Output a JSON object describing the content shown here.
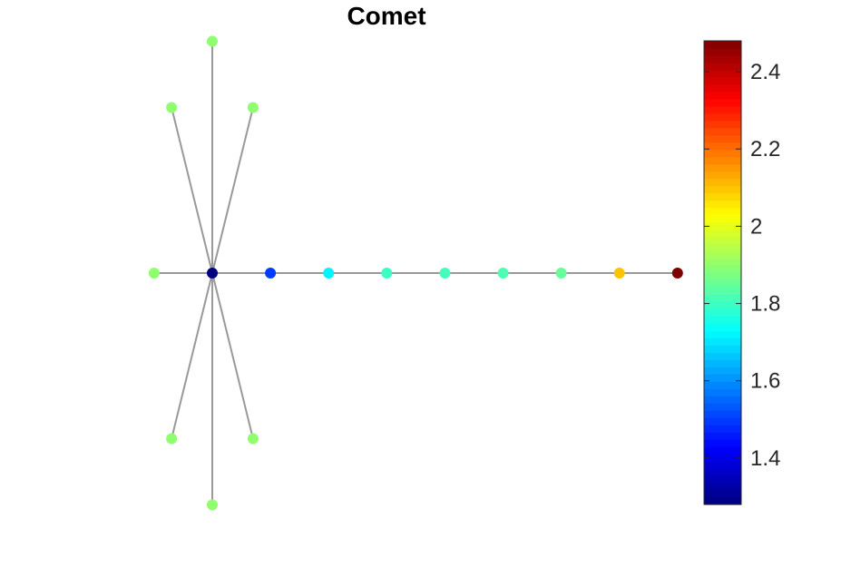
{
  "title": "Comet",
  "graph": {
    "edge_color": "#999999",
    "nodes": [
      {
        "id": "n1",
        "x": 0,
        "y": 0,
        "value": 1.28
      },
      {
        "id": "n2",
        "x": 0,
        "y": 3.5,
        "value": 1.9
      },
      {
        "id": "n3",
        "x": -0.7,
        "y": 2.5,
        "value": 1.9
      },
      {
        "id": "n4",
        "x": 0.7,
        "y": 2.5,
        "value": 1.9
      },
      {
        "id": "n5",
        "x": -1,
        "y": 0,
        "value": 1.9
      },
      {
        "id": "n6",
        "x": -0.7,
        "y": -2.5,
        "value": 1.9
      },
      {
        "id": "n7",
        "x": 0.7,
        "y": -2.5,
        "value": 1.9
      },
      {
        "id": "n8",
        "x": 0,
        "y": -3.5,
        "value": 1.9
      },
      {
        "id": "n9",
        "x": 1,
        "y": 0,
        "value": 1.5
      },
      {
        "id": "n10",
        "x": 2,
        "y": 0,
        "value": 1.72
      },
      {
        "id": "n11",
        "x": 3,
        "y": 0,
        "value": 1.8
      },
      {
        "id": "n12",
        "x": 4,
        "y": 0,
        "value": 1.81
      },
      {
        "id": "n13",
        "x": 5,
        "y": 0,
        "value": 1.82
      },
      {
        "id": "n14",
        "x": 6,
        "y": 0,
        "value": 1.85
      },
      {
        "id": "n15",
        "x": 7,
        "y": 0,
        "value": 2.1
      },
      {
        "id": "n16",
        "x": 8,
        "y": 0,
        "value": 2.48
      }
    ],
    "edges": [
      [
        "n1",
        "n2"
      ],
      [
        "n1",
        "n3"
      ],
      [
        "n1",
        "n4"
      ],
      [
        "n1",
        "n5"
      ],
      [
        "n1",
        "n6"
      ],
      [
        "n1",
        "n7"
      ],
      [
        "n1",
        "n8"
      ],
      [
        "n1",
        "n9"
      ],
      [
        "n9",
        "n10"
      ],
      [
        "n10",
        "n11"
      ],
      [
        "n11",
        "n12"
      ],
      [
        "n12",
        "n13"
      ],
      [
        "n13",
        "n14"
      ],
      [
        "n14",
        "n15"
      ],
      [
        "n15",
        "n16"
      ]
    ]
  },
  "colorbar": {
    "colormap": "jet",
    "range": [
      1.28,
      2.48
    ],
    "ticks": [
      1.4,
      1.6,
      1.8,
      2,
      2.2,
      2.4
    ],
    "tick_labels": [
      "1.4",
      "1.6",
      "1.8",
      "2",
      "2.2",
      "2.4"
    ]
  }
}
